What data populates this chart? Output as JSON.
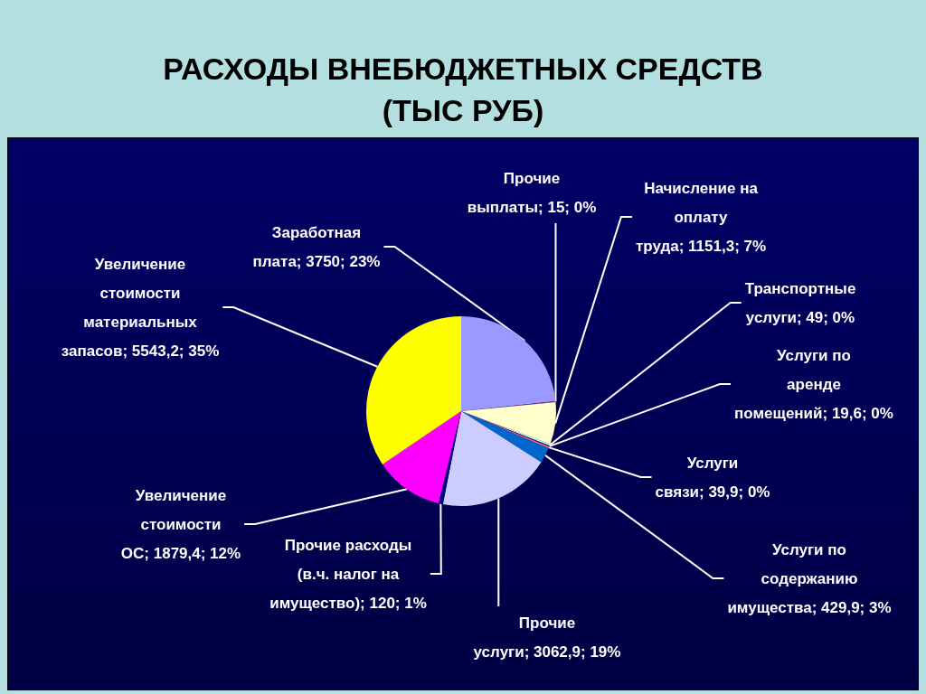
{
  "chart_data": {
    "type": "pie",
    "title": "РАСХОДЫ ВНЕБЮДЖЕТНЫХ СРЕДСТВ\n(ТЫС РУБ)",
    "categories": [
      "Заработная плата",
      "Прочие выплаты",
      "Начисление на оплату труда",
      "Транспортные услуги",
      "Услуги по аренде помещений",
      "Услуги связи",
      "Услуги по содержанию имущества",
      "Прочие услуги",
      "Прочие расходы (в.ч. налог на имущество)",
      "Увеличение стоимости ОС",
      "Увеличение стоимости материальных запасов"
    ],
    "values": [
      3750,
      15,
      1151.3,
      49,
      19.6,
      39.9,
      429.9,
      3062.9,
      120,
      1879.4,
      5543.2
    ],
    "value_labels": [
      "3750; 23%",
      "15; 0%",
      "1151,3; 7%",
      "49; 0%",
      "19,6; 0%",
      "39,9; 0%",
      "429,9; 3%",
      "3062,9; 19%",
      "120; 1%",
      "1879,4; 12%",
      "5543,2; 35%"
    ],
    "colors": [
      "#9999ff",
      "#993366",
      "#ffffcc",
      "#ccffff",
      "#660066",
      "#ff8080",
      "#0066cc",
      "#ccccff",
      "#000080",
      "#ff00ff",
      "#ffff00"
    ],
    "legend": false
  }
}
